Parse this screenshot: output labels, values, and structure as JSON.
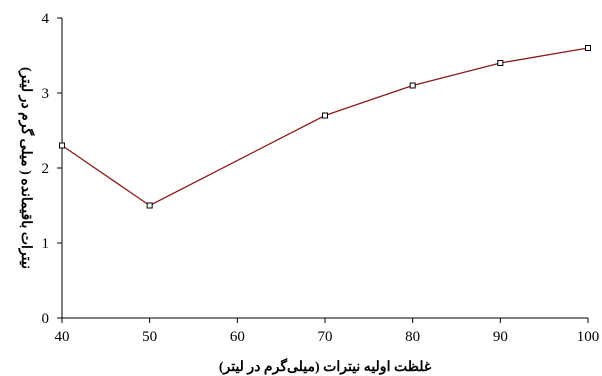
{
  "chart_data": {
    "type": "line",
    "title": "",
    "xlabel": "غلظت اولیه نیترات (میلی‌گرم در لیتر)",
    "ylabel": "نیترات باقیمانده ( میلی گرم در لیتر)",
    "xlim": [
      40,
      100
    ],
    "ylim": [
      0,
      4
    ],
    "xticks": [
      40,
      50,
      60,
      70,
      80,
      90,
      100
    ],
    "yticks": [
      0,
      1,
      2,
      3,
      4
    ],
    "grid": false,
    "legend": "none",
    "series": [
      {
        "color": "#8b1a1a",
        "marker": "square",
        "x": [
          40,
          50,
          70,
          80,
          90,
          100
        ],
        "y": [
          2.3,
          1.5,
          2.7,
          3.1,
          3.4,
          3.6
        ]
      }
    ]
  }
}
